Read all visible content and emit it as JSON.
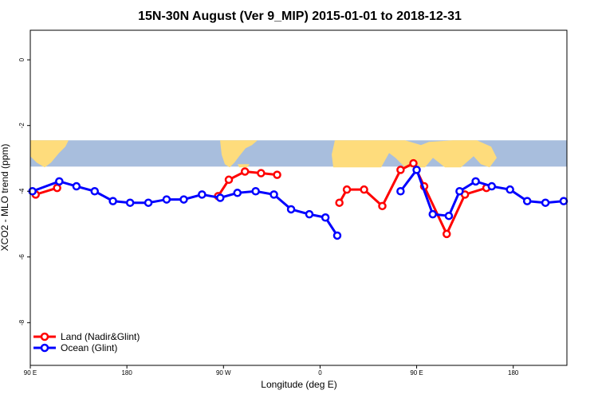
{
  "chart_data": {
    "type": "line",
    "title": "15N-30N August (Ver 9_MIP)   2015-01-01 to 2018-12-31",
    "xlabel": "Longitude (deg E)",
    "ylabel": "XCO2 - MLO trend (ppm)",
    "xlim": [
      90,
      590
    ],
    "ylim": [
      -9.3,
      0.9
    ],
    "x_ticks": [
      {
        "value": 90,
        "label": "90 E"
      },
      {
        "value": 180,
        "label": "180"
      },
      {
        "value": 270,
        "label": "90 W"
      },
      {
        "value": 360,
        "label": "0"
      },
      {
        "value": 450,
        "label": "90 E"
      },
      {
        "value": 540,
        "label": "180"
      }
    ],
    "y_ticks": [
      {
        "value": 0,
        "label": "0"
      },
      {
        "value": -2,
        "label": "-2"
      },
      {
        "value": -4,
        "label": "-4"
      },
      {
        "value": -6,
        "label": "-6"
      },
      {
        "value": -8,
        "label": "-8"
      }
    ],
    "map_band": {
      "y_top": -2.45,
      "y_bottom": -3.25,
      "ocean_color": "#a8bedd",
      "land_color": "#fedc7c"
    },
    "legend_position": "bottom-left",
    "grid": false,
    "series": [
      {
        "name": "Land (Nadir&Glint)",
        "color": "#ff0000",
        "segments": [
          {
            "x": [
              95,
              115
            ],
            "y": [
              -4.1,
              -3.9
            ]
          },
          {
            "x": [
              265,
              275,
              290,
              305,
              320
            ],
            "y": [
              -4.15,
              -3.65,
              -3.4,
              -3.45,
              -3.5
            ]
          },
          {
            "x": [
              378,
              385,
              401,
              418,
              435,
              447,
              457,
              478,
              495,
              515
            ],
            "y": [
              -4.35,
              -3.95,
              -3.95,
              -4.45,
              -3.35,
              -3.15,
              -3.85,
              -5.3,
              -4.1,
              -3.9
            ]
          }
        ]
      },
      {
        "name": "Ocean (Glint)",
        "color": "#0000ff",
        "segments": [
          {
            "x": [
              92,
              117,
              133,
              150,
              167,
              183,
              200,
              217,
              233,
              250,
              267,
              283,
              300,
              317,
              333,
              350,
              365,
              376
            ],
            "y": [
              -4.0,
              -3.7,
              -3.85,
              -4.0,
              -4.3,
              -4.35,
              -4.35,
              -4.25,
              -4.25,
              -4.1,
              -4.2,
              -4.05,
              -4.0,
              -4.1,
              -4.55,
              -4.7,
              -4.8,
              -5.35
            ]
          },
          {
            "x": [
              435,
              450,
              465,
              480,
              490,
              505,
              520,
              537,
              553,
              570,
              587
            ],
            "y": [
              -4.0,
              -3.35,
              -4.7,
              -4.75,
              -4.0,
              -3.7,
              -3.85,
              -3.95,
              -4.3,
              -4.35,
              -4.3
            ]
          }
        ]
      }
    ]
  }
}
